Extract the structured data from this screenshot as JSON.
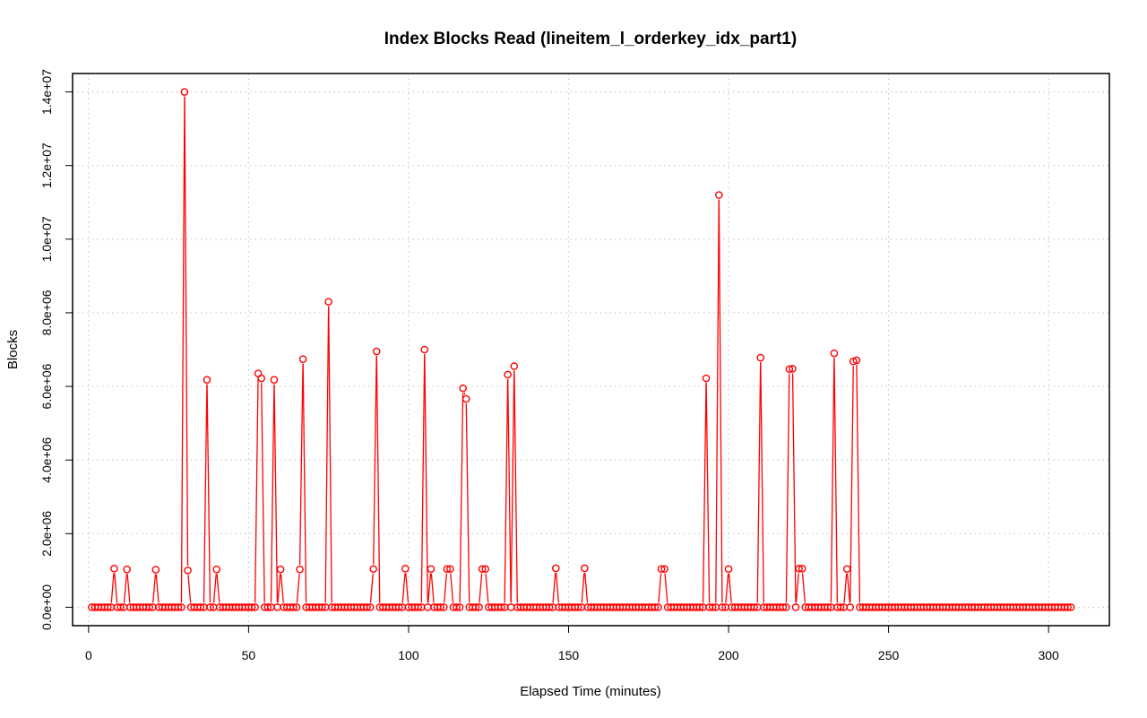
{
  "chart_data": {
    "type": "line",
    "title": "Index Blocks Read (lineitem_l_orderkey_idx_part1)",
    "xlabel": "Elapsed Time (minutes)",
    "ylabel": "Blocks",
    "xlim": [
      -5,
      319
    ],
    "ylim": [
      -500000,
      14500000
    ],
    "x_ticks": [
      0,
      50,
      100,
      150,
      200,
      250,
      300
    ],
    "x_tick_labels": [
      "0",
      "50",
      "100",
      "150",
      "200",
      "250",
      "300"
    ],
    "y_ticks": [
      0,
      2000000,
      4000000,
      6000000,
      8000000,
      10000000,
      12000000,
      14000000
    ],
    "y_tick_labels": [
      "0.0e+00",
      "2.0e+06",
      "4.0e+06",
      "6.0e+06",
      "8.0e+06",
      "1.0e+07",
      "1.2e+07",
      "1.4e+07"
    ],
    "grid": true,
    "series_color": "#ff0000",
    "n_points": 307,
    "baseline": 0,
    "peaks": [
      [
        8,
        1050000
      ],
      [
        12,
        1030000
      ],
      [
        21,
        1020000
      ],
      [
        30,
        14000000
      ],
      [
        31,
        1000000
      ],
      [
        37,
        6180000
      ],
      [
        40,
        1030000
      ],
      [
        53,
        6350000
      ],
      [
        54,
        6220000
      ],
      [
        58,
        6180000
      ],
      [
        60,
        1030000
      ],
      [
        66,
        1030000
      ],
      [
        67,
        6740000
      ],
      [
        75,
        8300000
      ],
      [
        89,
        1040000
      ],
      [
        90,
        6950000
      ],
      [
        99,
        1050000
      ],
      [
        105,
        7000000
      ],
      [
        107,
        1040000
      ],
      [
        112,
        1040000
      ],
      [
        113,
        1040000
      ],
      [
        117,
        5950000
      ],
      [
        118,
        5660000
      ],
      [
        123,
        1040000
      ],
      [
        124,
        1040000
      ],
      [
        131,
        6320000
      ],
      [
        133,
        6550000
      ],
      [
        146,
        1060000
      ],
      [
        155,
        1060000
      ],
      [
        179,
        1040000
      ],
      [
        180,
        1040000
      ],
      [
        193,
        6220000
      ],
      [
        197,
        11200000
      ],
      [
        200,
        1040000
      ],
      [
        210,
        6780000
      ],
      [
        219,
        6470000
      ],
      [
        220,
        6480000
      ],
      [
        222,
        1050000
      ],
      [
        223,
        1050000
      ],
      [
        233,
        6900000
      ],
      [
        237,
        1040000
      ],
      [
        239,
        6680000
      ],
      [
        240,
        6710000
      ]
    ]
  }
}
